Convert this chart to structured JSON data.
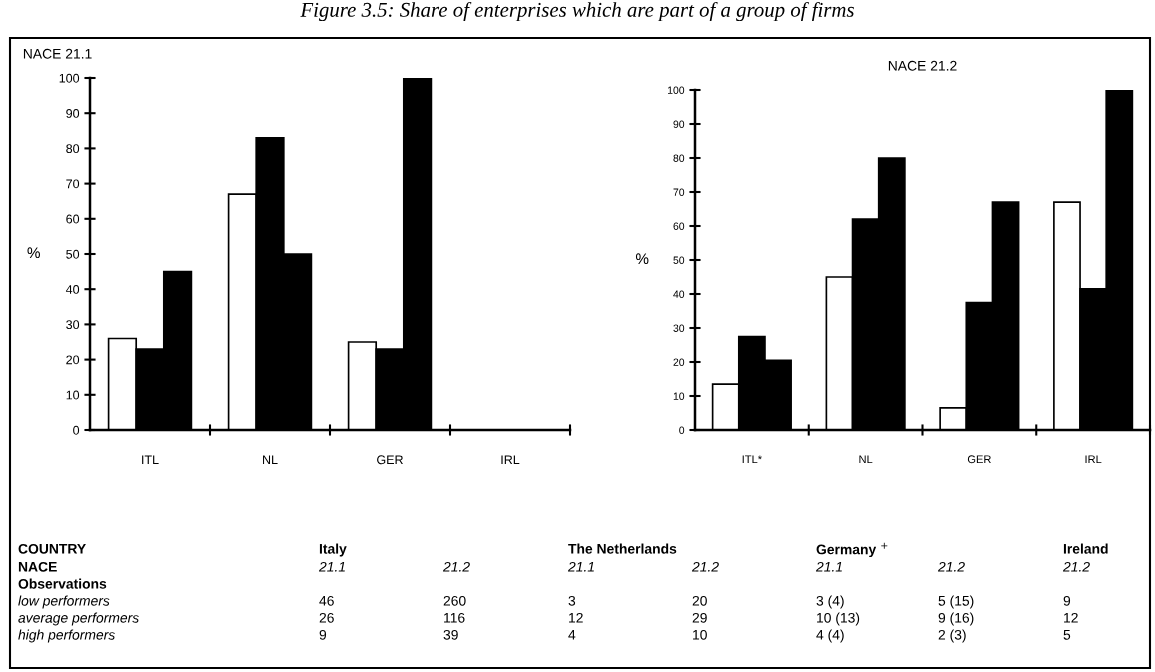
{
  "chart_data": [
    {
      "type": "bar",
      "title": "NACE 21.1",
      "ylabel": "%",
      "categories": [
        "ITL",
        "NL",
        "GER",
        "IRL"
      ],
      "series": [
        {
          "color": "#ffffff",
          "values": [
            26,
            67,
            25,
            null
          ]
        },
        {
          "color": "#000000",
          "values": [
            23,
            83,
            23,
            null
          ]
        },
        {
          "color": "#000000",
          "values": [
            45,
            50,
            100,
            null
          ]
        }
      ],
      "ylim": [
        0,
        100
      ],
      "yticks": [
        0,
        10,
        20,
        30,
        40,
        50,
        60,
        70,
        80,
        90,
        100
      ],
      "grid": false
    },
    {
      "type": "bar",
      "title": "NACE 21.2",
      "ylabel": "%",
      "categories": [
        "ITL*",
        "NL",
        "GER",
        "IRL"
      ],
      "series": [
        {
          "color": "#ffffff",
          "values": [
            13.5,
            45,
            6.5,
            67
          ]
        },
        {
          "color": "#000000",
          "values": [
            27.5,
            62,
            37.5,
            41.5
          ]
        },
        {
          "color": "#000000",
          "values": [
            20.5,
            80,
            67,
            100
          ]
        }
      ],
      "ylim": [
        0,
        100
      ],
      "yticks": [
        0,
        10,
        20,
        30,
        40,
        50,
        60,
        70,
        80,
        90,
        100
      ],
      "grid": false
    },
    {
      "type": "other",
      "title": "Figure 3.5: Share of enterprises which are part of a group of firms",
      "annotations": [
        "COUNTRY",
        "Italy",
        "The Netherlands",
        "Germany $^{+}$",
        "Ireland",
        "NACE",
        "21.1",
        "21.2",
        "21.1",
        "21.2",
        "21.1",
        "21.2",
        "21.2",
        "Observations",
        "low performers",
        "46",
        "260",
        "3",
        "20",
        "3 (4)",
        "5 (15)",
        "9",
        "average performers",
        "26",
        "116",
        "12",
        "29",
        "10 (13)",
        "9 (16)",
        "12",
        "high performers",
        "9",
        "39",
        "4",
        "10",
        "4 (4)",
        "2 (3)",
        "5"
      ]
    }
  ]
}
